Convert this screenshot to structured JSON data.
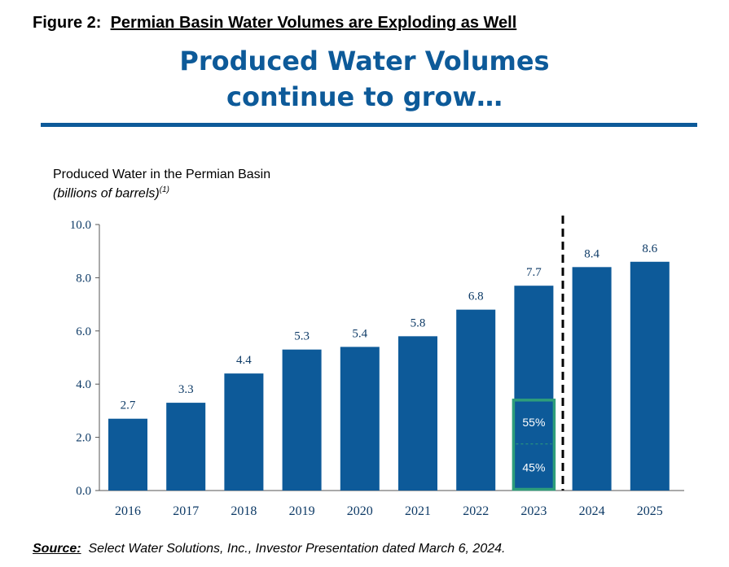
{
  "figure": {
    "label": "Figure 2:",
    "title": "Permian Basin Water Volumes are Exploding as Well"
  },
  "headline": {
    "line1": "Produced Water Volumes",
    "line2": "continue to grow…"
  },
  "chart_data": {
    "type": "bar",
    "title": "Produced Water in the Permian Basin",
    "subtitle": "(billions of barrels)",
    "subtitle_footnote": "(1)",
    "categories": [
      "2016",
      "2017",
      "2018",
      "2019",
      "2020",
      "2021",
      "2022",
      "2023",
      "2024",
      "2025"
    ],
    "values": [
      2.7,
      3.3,
      4.4,
      5.3,
      5.4,
      5.8,
      6.8,
      7.7,
      8.4,
      8.6
    ],
    "data_labels": [
      "2.7",
      "3.3",
      "4.4",
      "5.3",
      "5.4",
      "5.8",
      "6.8",
      "7.7",
      "8.4",
      "8.6"
    ],
    "yticks": [
      "0.0",
      "2.0",
      "4.0",
      "6.0",
      "8.0",
      "10.0"
    ],
    "ylim": [
      0,
      10
    ],
    "grid": false,
    "bar_color": "#0d5a99",
    "divider_between": [
      "2023",
      "2024"
    ],
    "highlight": {
      "category": "2023",
      "range": [
        0,
        3.4
      ],
      "split": 1.75,
      "upper_label": "55%",
      "lower_label": "45%",
      "color": "#2e9e7a"
    }
  },
  "source": {
    "label": "Source:",
    "text": "Select Water Solutions, Inc., Investor Presentation dated March 6, 2024."
  }
}
